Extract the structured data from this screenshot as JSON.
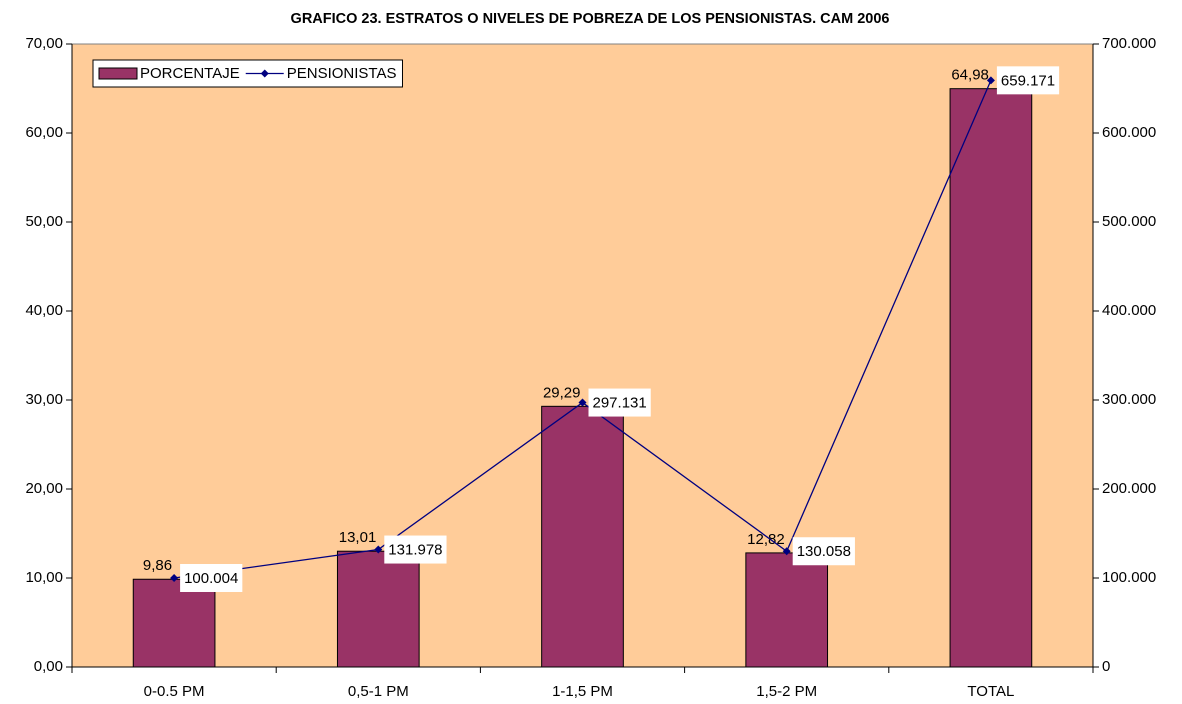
{
  "chart_data": {
    "type": "bar",
    "title": "GRAFICO 23. ESTRATOS O NIVELES DE POBREZA DE LOS PENSIONISTAS. CAM 2006",
    "categories": [
      "0-0.5 PM",
      "0,5-1 PM",
      "1-1,5 PM",
      "1,5-2 PM",
      "TOTAL"
    ],
    "series": [
      {
        "name": "PORCENTAJE",
        "type": "bar",
        "color": "#993366",
        "values": [
          9.86,
          13.01,
          29.29,
          12.82,
          64.98
        ],
        "value_labels": [
          "9,86",
          "13,01",
          "29,29",
          "12,82",
          "64,98"
        ]
      },
      {
        "name": "PENSIONISTAS",
        "type": "line",
        "axis": "y2",
        "color": "#000080",
        "values": [
          100004,
          131978,
          297131,
          130058,
          659171
        ],
        "value_labels": [
          "100.004",
          "131.978",
          "297.131",
          "130.058",
          "659.171"
        ]
      }
    ],
    "ylim": [
      0,
      70
    ],
    "yticks": [
      {
        "value": 0,
        "label": "0,00"
      },
      {
        "value": 10,
        "label": "10,00"
      },
      {
        "value": 20,
        "label": "20,00"
      },
      {
        "value": 30,
        "label": "30,00"
      },
      {
        "value": 40,
        "label": "40,00"
      },
      {
        "value": 50,
        "label": "50,00"
      },
      {
        "value": 60,
        "label": "60,00"
      },
      {
        "value": 70,
        "label": "70,00"
      }
    ],
    "y2lim": [
      0,
      700000
    ],
    "y2ticks": [
      0,
      {
        "value": 100000,
        "label": "100.000"
      },
      {
        "value": 200000,
        "label": "200.000"
      },
      {
        "value": 300000,
        "label": "300.000"
      },
      {
        "value": 400000,
        "label": "400.000"
      },
      {
        "value": 500000,
        "label": "500.000"
      },
      {
        "value": 600000,
        "label": "600.000"
      },
      {
        "value": 700000,
        "label": "700.000"
      }
    ],
    "plot_background": "#FFCC99",
    "legend": "top-left"
  }
}
